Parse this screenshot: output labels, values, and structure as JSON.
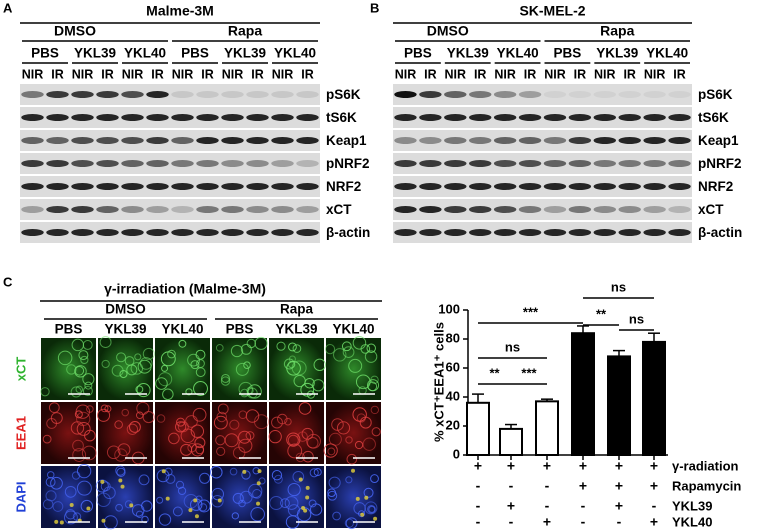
{
  "panel_a": {
    "label": "A",
    "title": "Malme-3M",
    "groups": [
      "DMSO",
      "Rapa"
    ],
    "treatments": [
      "PBS",
      "YKL39",
      "YKL40",
      "PBS",
      "YKL39",
      "YKL40"
    ],
    "lanes": [
      "NIR",
      "IR",
      "NIR",
      "IR",
      "NIR",
      "IR",
      "NIR",
      "IR",
      "NIR",
      "IR",
      "NIR",
      "IR"
    ],
    "rows": [
      "pS6K",
      "tS6K",
      "Keap1",
      "pNRF2",
      "NRF2",
      "xCT",
      "β-actin"
    ]
  },
  "panel_b": {
    "label": "B",
    "title": "SK-MEL-2",
    "groups": [
      "DMSO",
      "Rapa"
    ],
    "treatments": [
      "PBS",
      "YKL39",
      "YKL40",
      "PBS",
      "YKL39",
      "YKL40"
    ],
    "lanes": [
      "NIR",
      "IR",
      "NIR",
      "IR",
      "NIR",
      "IR",
      "NIR",
      "IR",
      "NIR",
      "IR",
      "NIR",
      "IR"
    ],
    "rows": [
      "pS6K",
      "tS6K",
      "Keap1",
      "pNRF2",
      "NRF2",
      "xCT",
      "β-actin"
    ]
  },
  "panel_c": {
    "label": "C",
    "title": "γ-irradiation (Malme-3M)",
    "groups": [
      "DMSO",
      "Rapa"
    ],
    "treatments": [
      "PBS",
      "YKL39",
      "YKL40",
      "PBS",
      "YKL39",
      "YKL40"
    ],
    "channels": [
      "xCT",
      "EEA1",
      "DAPI"
    ]
  },
  "chart_data": {
    "type": "bar",
    "y_label": "% xCT⁺EEA1⁺ cells",
    "values": [
      36,
      18,
      37,
      84,
      68,
      78
    ],
    "errors": [
      6,
      3,
      1.5,
      5,
      4,
      6
    ],
    "colors": [
      "#ffffff",
      "#ffffff",
      "#ffffff",
      "#000000",
      "#000000",
      "#000000"
    ],
    "ylim": [
      0,
      100
    ],
    "yticks": [
      0,
      20,
      40,
      60,
      80,
      100
    ],
    "annotations": [
      "ns",
      "***",
      "**",
      "ns",
      "ns",
      "**",
      "***"
    ],
    "conditions": [
      {
        "label": "γ-radiation",
        "signs": [
          "+",
          "+",
          "+",
          "+",
          "+",
          "+"
        ]
      },
      {
        "label": "Rapamycin",
        "signs": [
          "-",
          "-",
          "-",
          "+",
          "+",
          "+"
        ]
      },
      {
        "label": "YKL39",
        "signs": [
          "-",
          "+",
          "-",
          "-",
          "+",
          "-"
        ]
      },
      {
        "label": "YKL40",
        "signs": [
          "-",
          "-",
          "+",
          "-",
          "-",
          "+"
        ]
      }
    ]
  }
}
